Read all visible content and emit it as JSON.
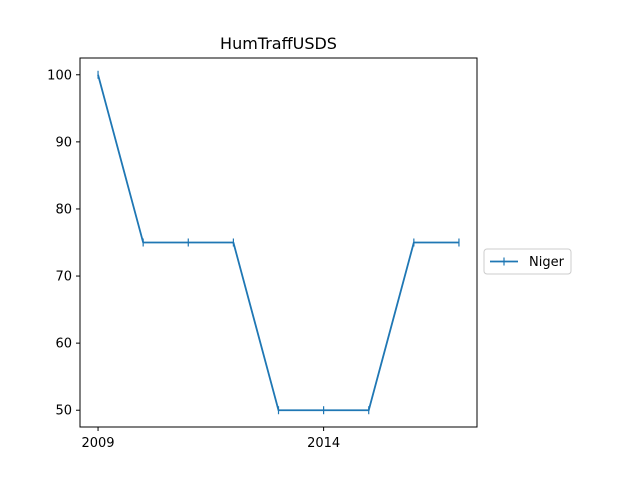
{
  "chart_data": {
    "type": "line",
    "title": "HumTraffUSDS",
    "xlabel": "",
    "ylabel": "",
    "x": [
      2009,
      2010,
      2011,
      2012,
      2013,
      2014,
      2015,
      2016,
      2017
    ],
    "series": [
      {
        "name": "Niger",
        "values": [
          100,
          75,
          75,
          75,
          50,
          50,
          50,
          75,
          75
        ],
        "color": "#1f77b4",
        "marker": "vertical-line"
      }
    ],
    "xlim": [
      2008.6,
      2017.4
    ],
    "ylim": [
      47.5,
      102.5
    ],
    "x_ticks": [
      "2009",
      "2014"
    ],
    "y_ticks": [
      "50",
      "60",
      "70",
      "80",
      "90",
      "100"
    ],
    "grid": false,
    "legend_position": "right, outside plot"
  }
}
